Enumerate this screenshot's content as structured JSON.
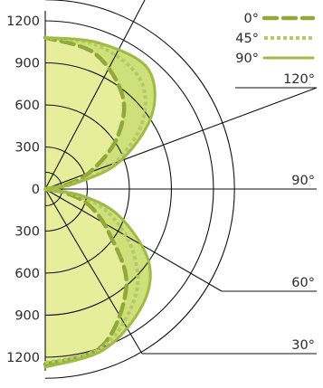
{
  "chart_data": {
    "type": "polar",
    "radial_ticks_upper": [
      "1200",
      "900",
      "600",
      "300",
      "0"
    ],
    "radial_ticks_lower": [
      "300",
      "600",
      "900",
      "1200"
    ],
    "radial_range": [
      0,
      1200
    ],
    "ring_values": [
      300,
      600,
      900,
      1200
    ],
    "angle_labels": [
      {
        "angle": 120,
        "label": "120°"
      },
      {
        "angle": 90,
        "label": "90°"
      },
      {
        "angle": 60,
        "label": "60°"
      },
      {
        "angle": 30,
        "label": "30°"
      }
    ],
    "series": [
      {
        "name": "0°",
        "style": "dashed",
        "color": "#8faa3a",
        "points": [
          [
            0,
            1250
          ],
          [
            20,
            1190
          ],
          [
            40,
            900
          ],
          [
            55,
            560
          ],
          [
            70,
            330
          ],
          [
            80,
            130
          ],
          [
            90,
            0
          ],
          [
            100,
            120
          ],
          [
            110,
            330
          ],
          [
            125,
            620
          ],
          [
            140,
            860
          ],
          [
            160,
            1030
          ],
          [
            180,
            1080
          ]
        ]
      },
      {
        "name": "45°",
        "style": "dotted",
        "color": "#b4c96a",
        "points": [
          [
            0,
            1240
          ],
          [
            20,
            1200
          ],
          [
            40,
            1000
          ],
          [
            55,
            760
          ],
          [
            70,
            470
          ],
          [
            80,
            200
          ],
          [
            90,
            0
          ],
          [
            100,
            180
          ],
          [
            110,
            520
          ],
          [
            125,
            850
          ],
          [
            140,
            1040
          ],
          [
            160,
            1090
          ],
          [
            180,
            1080
          ]
        ]
      },
      {
        "name": "90°",
        "style": "solid",
        "color": "#9fbb43",
        "points": [
          [
            0,
            1270
          ],
          [
            20,
            1220
          ],
          [
            40,
            1080
          ],
          [
            55,
            900
          ],
          [
            70,
            560
          ],
          [
            80,
            260
          ],
          [
            90,
            0
          ],
          [
            100,
            200
          ],
          [
            110,
            560
          ],
          [
            125,
            930
          ],
          [
            140,
            1130
          ],
          [
            160,
            1110
          ],
          [
            180,
            1080
          ]
        ]
      }
    ],
    "legend_position": "top-right",
    "grid": true
  },
  "colors": {
    "fill_outer": "#cfe07a",
    "fill_inner": "#e6ee9c",
    "grid": "#111111"
  }
}
